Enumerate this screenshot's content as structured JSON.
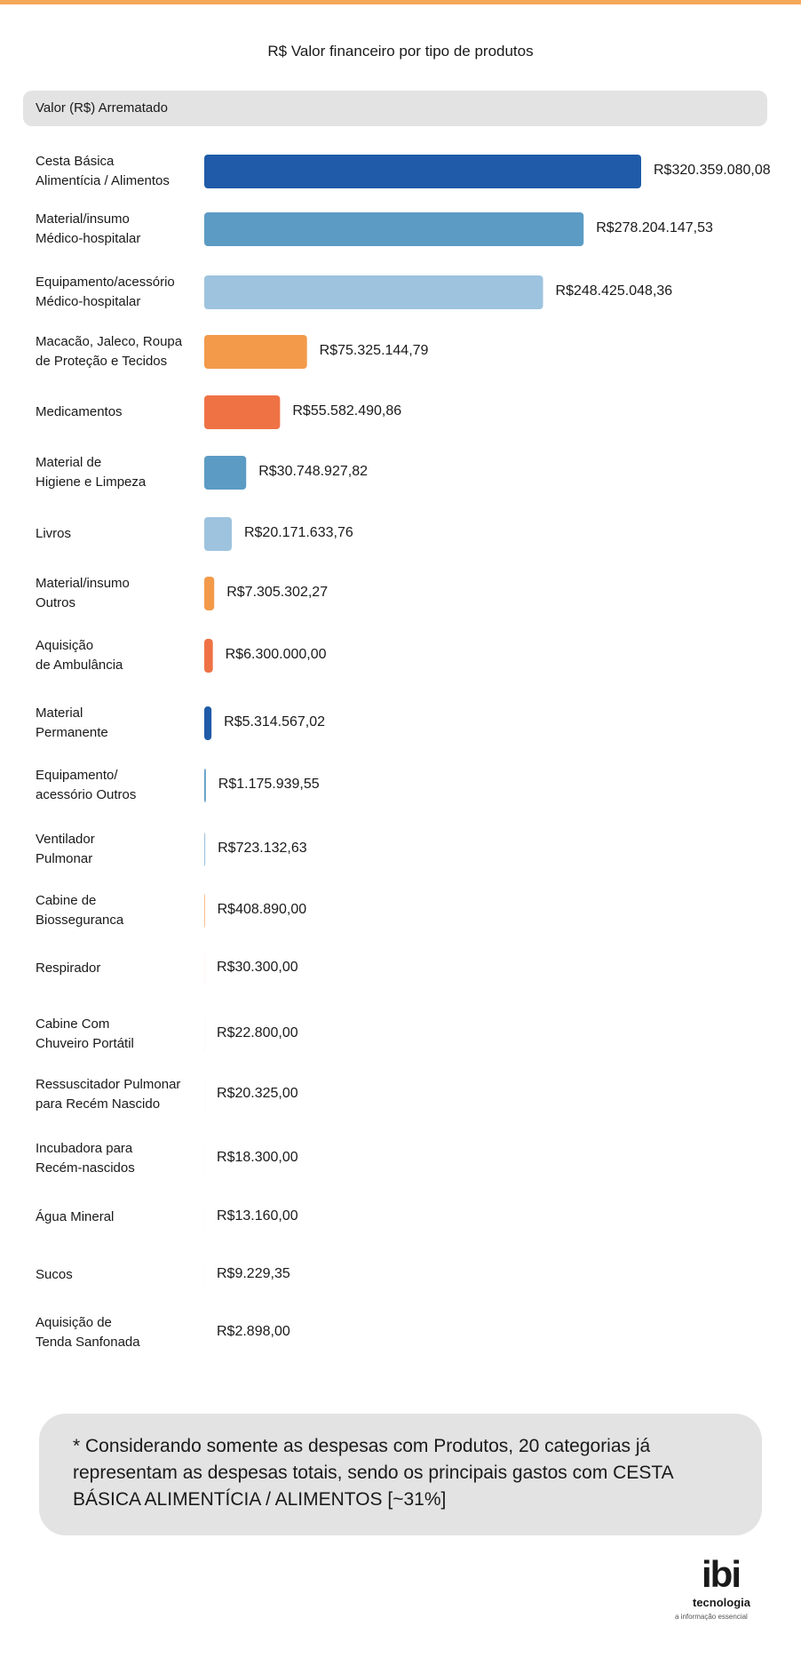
{
  "chart_data": {
    "type": "hbar",
    "title": "R$ Valor financeiro por tipo de produtos",
    "series_header": "Valor (R$) Arrematado",
    "categories": [
      "Cesta Básica\nAlimentícia / Alimentos",
      "Material/insumo\nMédico-hospitalar",
      "Equipamento/acessório\nMédico-hospitalar",
      "Macacão, Jaleco, Roupa\nde Proteção e Tecidos",
      "Medicamentos",
      "Material de\nHigiene e Limpeza",
      "Livros",
      "Material/insumo\nOutros",
      "Aquisição\nde Ambulância",
      "Material\nPermanente",
      "Equipamento/\nacessório Outros",
      "Ventilador\nPulmonar",
      "Cabine de\nBiosseguranca",
      "Respirador",
      "Cabine Com\nChuveiro Portátil",
      "Ressuscitador Pulmonar\npara Recém Nascido",
      "Incubadora para\nRecém-nascidos",
      "Água Mineral",
      "Sucos",
      "Aquisição de\nTenda Sanfonada"
    ],
    "values": [
      320359080.08,
      278204147.53,
      248425048.36,
      75325144.79,
      55582490.86,
      30748927.82,
      20171633.76,
      7305302.27,
      6300000.0,
      5314567.02,
      1175939.55,
      723132.63,
      408890.0,
      30300.0,
      22800.0,
      20325.0,
      18300.0,
      13160.0,
      9229.35,
      2898.0
    ],
    "value_labels": [
      "R$320.359.080,08",
      "R$278.204.147,53",
      "R$248.425.048,36",
      "R$75.325.144,79",
      "R$55.582.490,86",
      "R$30.748.927,82",
      "R$20.171.633,76",
      "R$7.305.302,27",
      "R$6.300.000,00",
      "R$5.314.567,02",
      "R$1.175.939,55",
      "R$723.132,63",
      "R$408.890,00",
      "R$30.300,00",
      "R$22.800,00",
      "R$20.325,00",
      "R$18.300,00",
      "R$13.160,00",
      "R$9.229,35",
      "R$2.898,00"
    ],
    "colors": [
      "#1f5ba8",
      "#5b9bc4",
      "#9dc3de",
      "#f39a4a",
      "#ef7245",
      "#5b9bc4",
      "#9dc3de",
      "#f39a4a",
      "#ef7245",
      "#1f5ba8",
      "#5b9bc4",
      "#9dc3de",
      "#f39a4a",
      "#ef7245",
      "#1f5ba8",
      "#5b9bc4",
      "#9dc3de",
      "#f39a4a",
      "#ef7245",
      "#1f5ba8"
    ],
    "note": "* Considerando somente as despesas com Produtos, 20 categorias já representam as despesas totais, sendo os principais gastos com CESTA BÁSICA ALIMENTÍCIA / ALIMENTOS [~31%]"
  },
  "logo": {
    "name": "ibi",
    "subtitle": "tecnologia",
    "tagline": "a informação essencial"
  }
}
